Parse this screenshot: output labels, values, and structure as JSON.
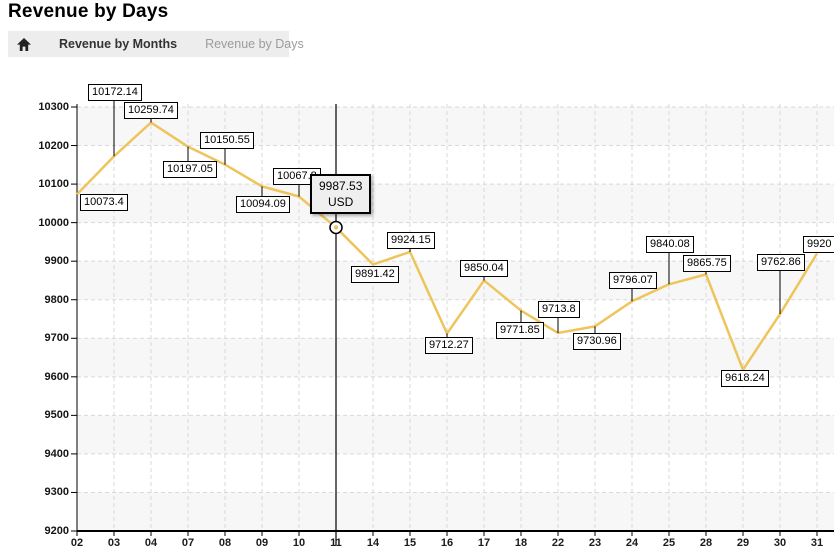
{
  "page": {
    "title": "Revenue by Days"
  },
  "breadcrumb": {
    "home_icon": "home-icon",
    "items": [
      {
        "label": "Revenue by Months"
      },
      {
        "label": "Revenue by Days"
      }
    ]
  },
  "chart_data": {
    "type": "line",
    "title": "Revenue by Days",
    "x": [
      "02",
      "03",
      "04",
      "07",
      "08",
      "09",
      "10",
      "11",
      "14",
      "15",
      "16",
      "17",
      "18",
      "22",
      "23",
      "24",
      "25",
      "28",
      "29",
      "30",
      "31"
    ],
    "xlabel": "",
    "ylabel": "",
    "series": [
      {
        "name": "Revenue (USD)",
        "values": [
          10073.4,
          10172.14,
          10259.74,
          10197.05,
          10150.55,
          10094.09,
          10067.8,
          9987.53,
          9891.42,
          9924.15,
          9712.27,
          9850.04,
          9771.85,
          9713.8,
          9730.96,
          9796.07,
          9840.08,
          9865.75,
          9618.24,
          9762.86,
          9920
        ]
      }
    ],
    "ylim": [
      9200,
      10300
    ],
    "ytick_step": 100,
    "grid": true,
    "point_labels": true,
    "legend": "none",
    "selected_point": {
      "x": "11",
      "index": 7,
      "value": 9987.53,
      "unit": "USD"
    },
    "colors": {
      "line": "#EEC55C",
      "label_box_bg": "#ffffff",
      "label_box_border": "#000000",
      "tooltip_bg": "#efefef",
      "band": "#f7f7f7",
      "grid": "#d9d9d9",
      "axis": "#000000",
      "crosshair": "#000000",
      "marker_fill": "#ffffff",
      "marker_ring": "#000000"
    }
  }
}
